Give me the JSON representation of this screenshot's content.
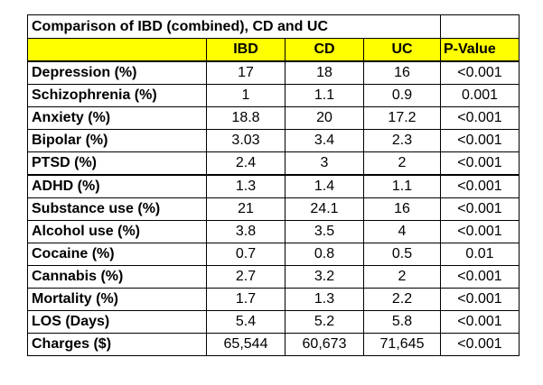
{
  "chart_data": {
    "type": "table",
    "title": "Comparison of IBD (combined), CD and UC",
    "columns": [
      "IBD",
      "CD",
      "UC",
      "P-Value"
    ],
    "rows": [
      {
        "label": "Depression (%)",
        "values": [
          "17",
          "18",
          "16",
          "<0.001"
        ]
      },
      {
        "label": "Schizophrenia (%)",
        "values": [
          "1",
          "1.1",
          "0.9",
          "0.001"
        ]
      },
      {
        "label": "Anxiety  (%)",
        "values": [
          "18.8",
          "20",
          "17.2",
          "<0.001"
        ]
      },
      {
        "label": "Bipolar (%)",
        "values": [
          "3.03",
          "3.4",
          "2.3",
          "<0.001"
        ]
      },
      {
        "label": "PTSD (%)",
        "values": [
          "2.4",
          "3",
          "2",
          "<0.001"
        ]
      },
      {
        "label": "ADHD (%)",
        "values": [
          "1.3",
          "1.4",
          "1.1",
          "<0.001"
        ]
      },
      {
        "label": "Substance use (%)",
        "values": [
          "21",
          "24.1",
          "16",
          "<0.001"
        ]
      },
      {
        "label": "Alcohol use (%)",
        "values": [
          "3.8",
          "3.5",
          "4",
          "<0.001"
        ]
      },
      {
        "label": "Cocaine (%)",
        "values": [
          "0.7",
          "0.8",
          "0.5",
          "0.01"
        ]
      },
      {
        "label": "Cannabis (%)",
        "values": [
          "2.7",
          "3.2",
          "2",
          "<0.001"
        ]
      },
      {
        "label": "Mortality (%)",
        "values": [
          "1.7",
          "1.3",
          "2.2",
          "<0.001"
        ]
      },
      {
        "label": "LOS (Days)",
        "values": [
          "5.4",
          "5.2",
          "5.8",
          "<0.001"
        ]
      },
      {
        "label": "Charges ($)",
        "values": [
          "65,544",
          "60,673",
          "71,645",
          "<0.001"
        ]
      }
    ],
    "header_color": "#ffff00"
  }
}
